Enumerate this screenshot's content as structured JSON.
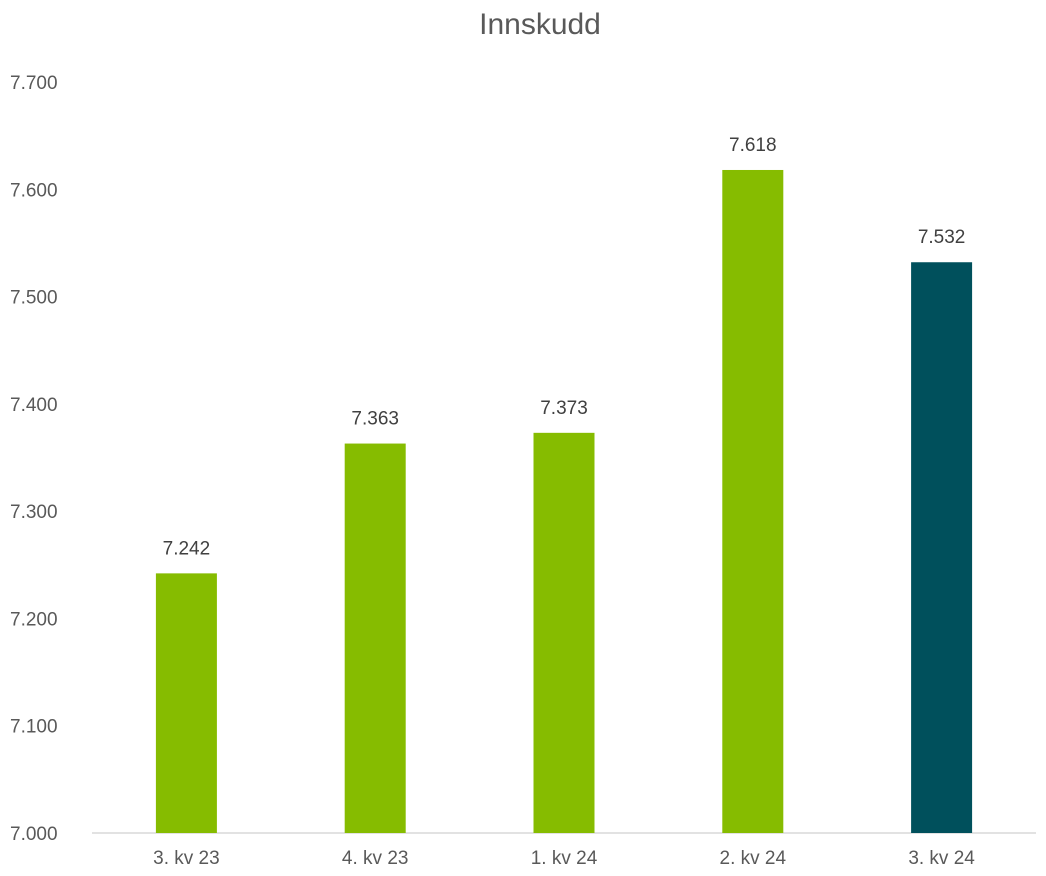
{
  "chart_data": {
    "type": "bar",
    "title": "Innskudd",
    "categories": [
      "3. kv 23",
      "4. kv 23",
      "1. kv 24",
      "2. kv 24",
      "3. kv 24"
    ],
    "values": [
      7242,
      7363,
      7373,
      7618,
      7532
    ],
    "data_labels": [
      "7.242",
      "7.363",
      "7.373",
      "7.618",
      "7.532"
    ],
    "bar_colors": [
      "#86bc00",
      "#86bc00",
      "#86bc00",
      "#86bc00",
      "#00505c"
    ],
    "ylim": [
      7000,
      7700
    ],
    "yticks": [
      7000,
      7100,
      7200,
      7300,
      7400,
      7500,
      7600,
      7700
    ],
    "ytick_labels": [
      "7.000",
      "7.100",
      "7.200",
      "7.300",
      "7.400",
      "7.500",
      "7.600",
      "7.700"
    ],
    "xlabel": "",
    "ylabel": "",
    "grid": false,
    "legend": false
  }
}
